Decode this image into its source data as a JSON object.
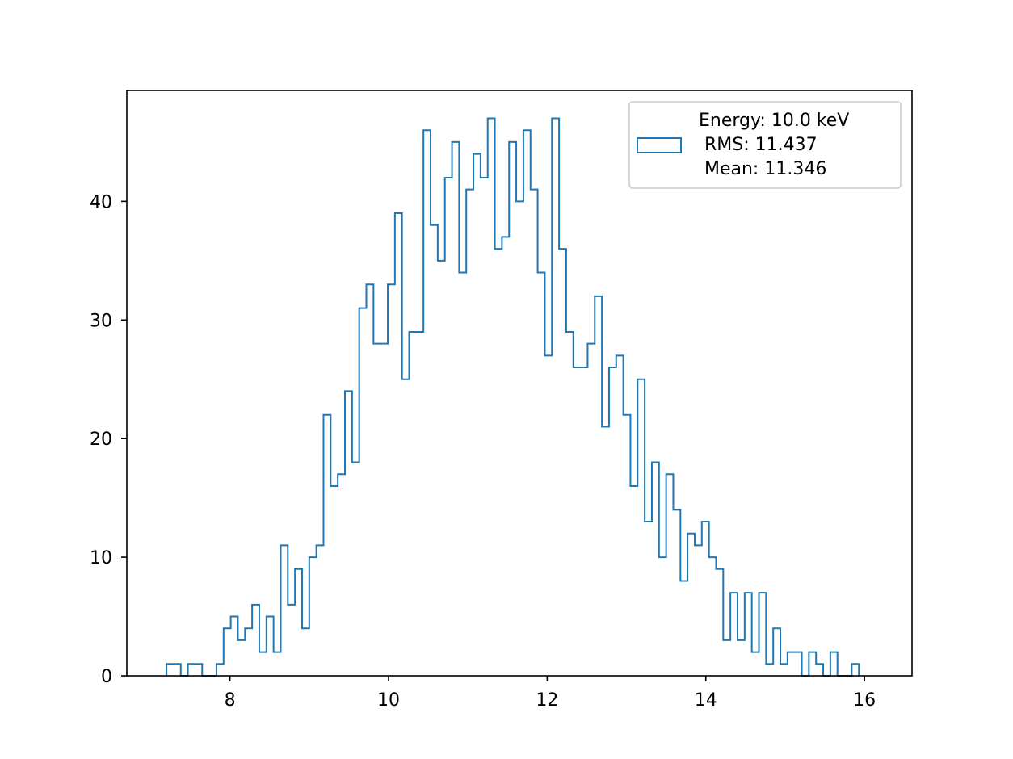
{
  "chart_data": {
    "type": "histogram",
    "title": "",
    "xlabel": "",
    "ylabel": "",
    "xlim": [
      6.7,
      16.6
    ],
    "ylim": [
      0,
      49.35
    ],
    "x_ticks": [
      8,
      10,
      12,
      14,
      16
    ],
    "y_ticks": [
      0,
      10,
      20,
      30,
      40
    ],
    "grid": false,
    "legend_position": "top-right",
    "series": [
      {
        "name": "Energy: 10.0 keV\n RMS: 11.437\n Mean: 11.346",
        "color": "#1f77b4",
        "histtype": "step",
        "bin_start": 7.2,
        "bin_width": 0.09,
        "counts": [
          1,
          1,
          0,
          1,
          1,
          0,
          0,
          1,
          4,
          5,
          3,
          4,
          6,
          2,
          5,
          2,
          11,
          6,
          9,
          4,
          10,
          11,
          22,
          16,
          17,
          24,
          18,
          31,
          33,
          28,
          28,
          33,
          39,
          25,
          29,
          29,
          46,
          38,
          35,
          42,
          45,
          34,
          41,
          44,
          42,
          47,
          36,
          37,
          45,
          40,
          46,
          41,
          34,
          27,
          47,
          36,
          29,
          26,
          26,
          28,
          32,
          21,
          26,
          27,
          22,
          16,
          25,
          13,
          18,
          10,
          17,
          14,
          8,
          12,
          11,
          13,
          10,
          9,
          3,
          7,
          3,
          7,
          2,
          7,
          1,
          4,
          1,
          2,
          2,
          0,
          2,
          1,
          0,
          2,
          0,
          0,
          1
        ]
      }
    ],
    "legend_lines": [
      "Energy: 10.0 keV",
      " RMS: 11.437",
      " Mean: 11.346"
    ]
  }
}
